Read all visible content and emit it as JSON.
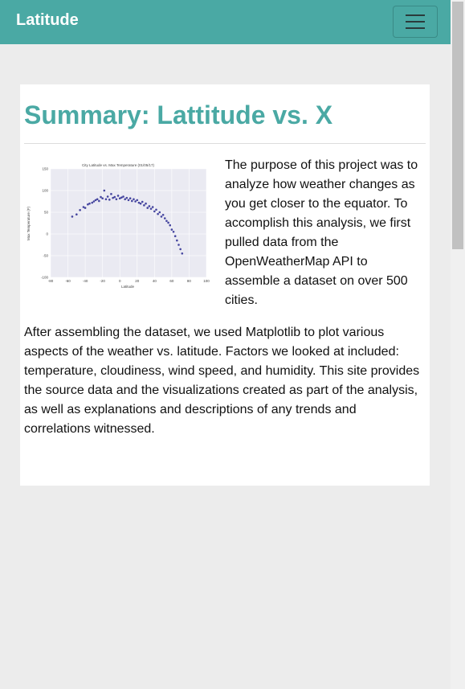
{
  "navbar": {
    "brand": "Latitude"
  },
  "content": {
    "heading": "Summary: Lattitude vs. X",
    "paragraphs": [
      "The purpose of this project was to analyze how weather changes as you get closer to the equator. To accomplish this analysis, we first pulled data from the OpenWeatherMap API to assemble a dataset on over 500 cities.",
      "After assembling the dataset, we used Matplotlib to plot various aspects of the weather vs. latitude. Factors we looked at included: temperature, cloudiness, wind speed, and humidity. This site provides the source data and the visualizations created as part of the analysis, as well as explanations and descriptions of any trends and correlations witnessed."
    ]
  },
  "chart_data": {
    "type": "scatter",
    "title": "City Latitude vs. Max Temperature (01/05/17)",
    "x_label": "Latitude",
    "y_label": "Max Temperature (F)",
    "xlim": [
      -80,
      100
    ],
    "xticks": [
      -80,
      -60,
      -40,
      -20,
      0,
      20,
      40,
      60,
      80,
      100
    ],
    "ylim": [
      -100,
      150
    ],
    "yticks": [
      -100,
      -50,
      0,
      50,
      100,
      150
    ],
    "grid": true,
    "color": "#1b1b8a",
    "x": [
      -55,
      -50,
      -46,
      -42,
      -40,
      -37,
      -35,
      -32,
      -30,
      -28,
      -26,
      -24,
      -22,
      -20,
      -18,
      -16,
      -14,
      -12,
      -10,
      -8,
      -6,
      -4,
      -2,
      0,
      2,
      4,
      6,
      8,
      10,
      12,
      14,
      16,
      18,
      20,
      22,
      24,
      26,
      28,
      30,
      32,
      34,
      36,
      38,
      40,
      42,
      44,
      46,
      48,
      50,
      52,
      54,
      56,
      58,
      60,
      62,
      64,
      66,
      68,
      70,
      72
    ],
    "values": [
      40,
      45,
      55,
      62,
      60,
      68,
      70,
      72,
      75,
      78,
      80,
      76,
      85,
      82,
      100,
      80,
      86,
      79,
      92,
      83,
      85,
      80,
      88,
      82,
      84,
      86,
      80,
      83,
      78,
      82,
      76,
      80,
      75,
      78,
      72,
      70,
      74,
      66,
      70,
      60,
      64,
      58,
      62,
      52,
      56,
      46,
      50,
      40,
      44,
      36,
      30,
      26,
      20,
      10,
      5,
      -5,
      -15,
      -25,
      -35,
      -45
    ]
  }
}
